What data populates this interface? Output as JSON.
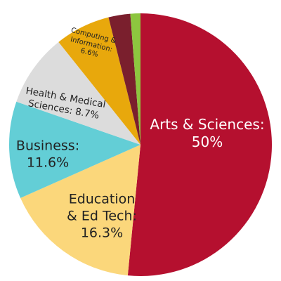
{
  "chart_data": {
    "type": "pie",
    "categories": [
      "Arts & Sciences:",
      "Education & Ed Tech:",
      "Business:",
      "Health & Medical Sciences:",
      "Computing & Information:",
      null,
      null
    ],
    "values": [
      50,
      16.3,
      11.6,
      8.7,
      6.6,
      2.6,
      1.2
    ],
    "value_labels": [
      "50%",
      "16.3%",
      "11.6%",
      "8.7%",
      "6.6%",
      null,
      null
    ],
    "colors": [
      "#b5102f",
      "#fbd77b",
      "#63ced6",
      "#dcdcdc",
      "#e8a80c",
      "#7a1f2d",
      "#8dc63f"
    ],
    "start_angle": 90,
    "direction": "clockwise"
  }
}
